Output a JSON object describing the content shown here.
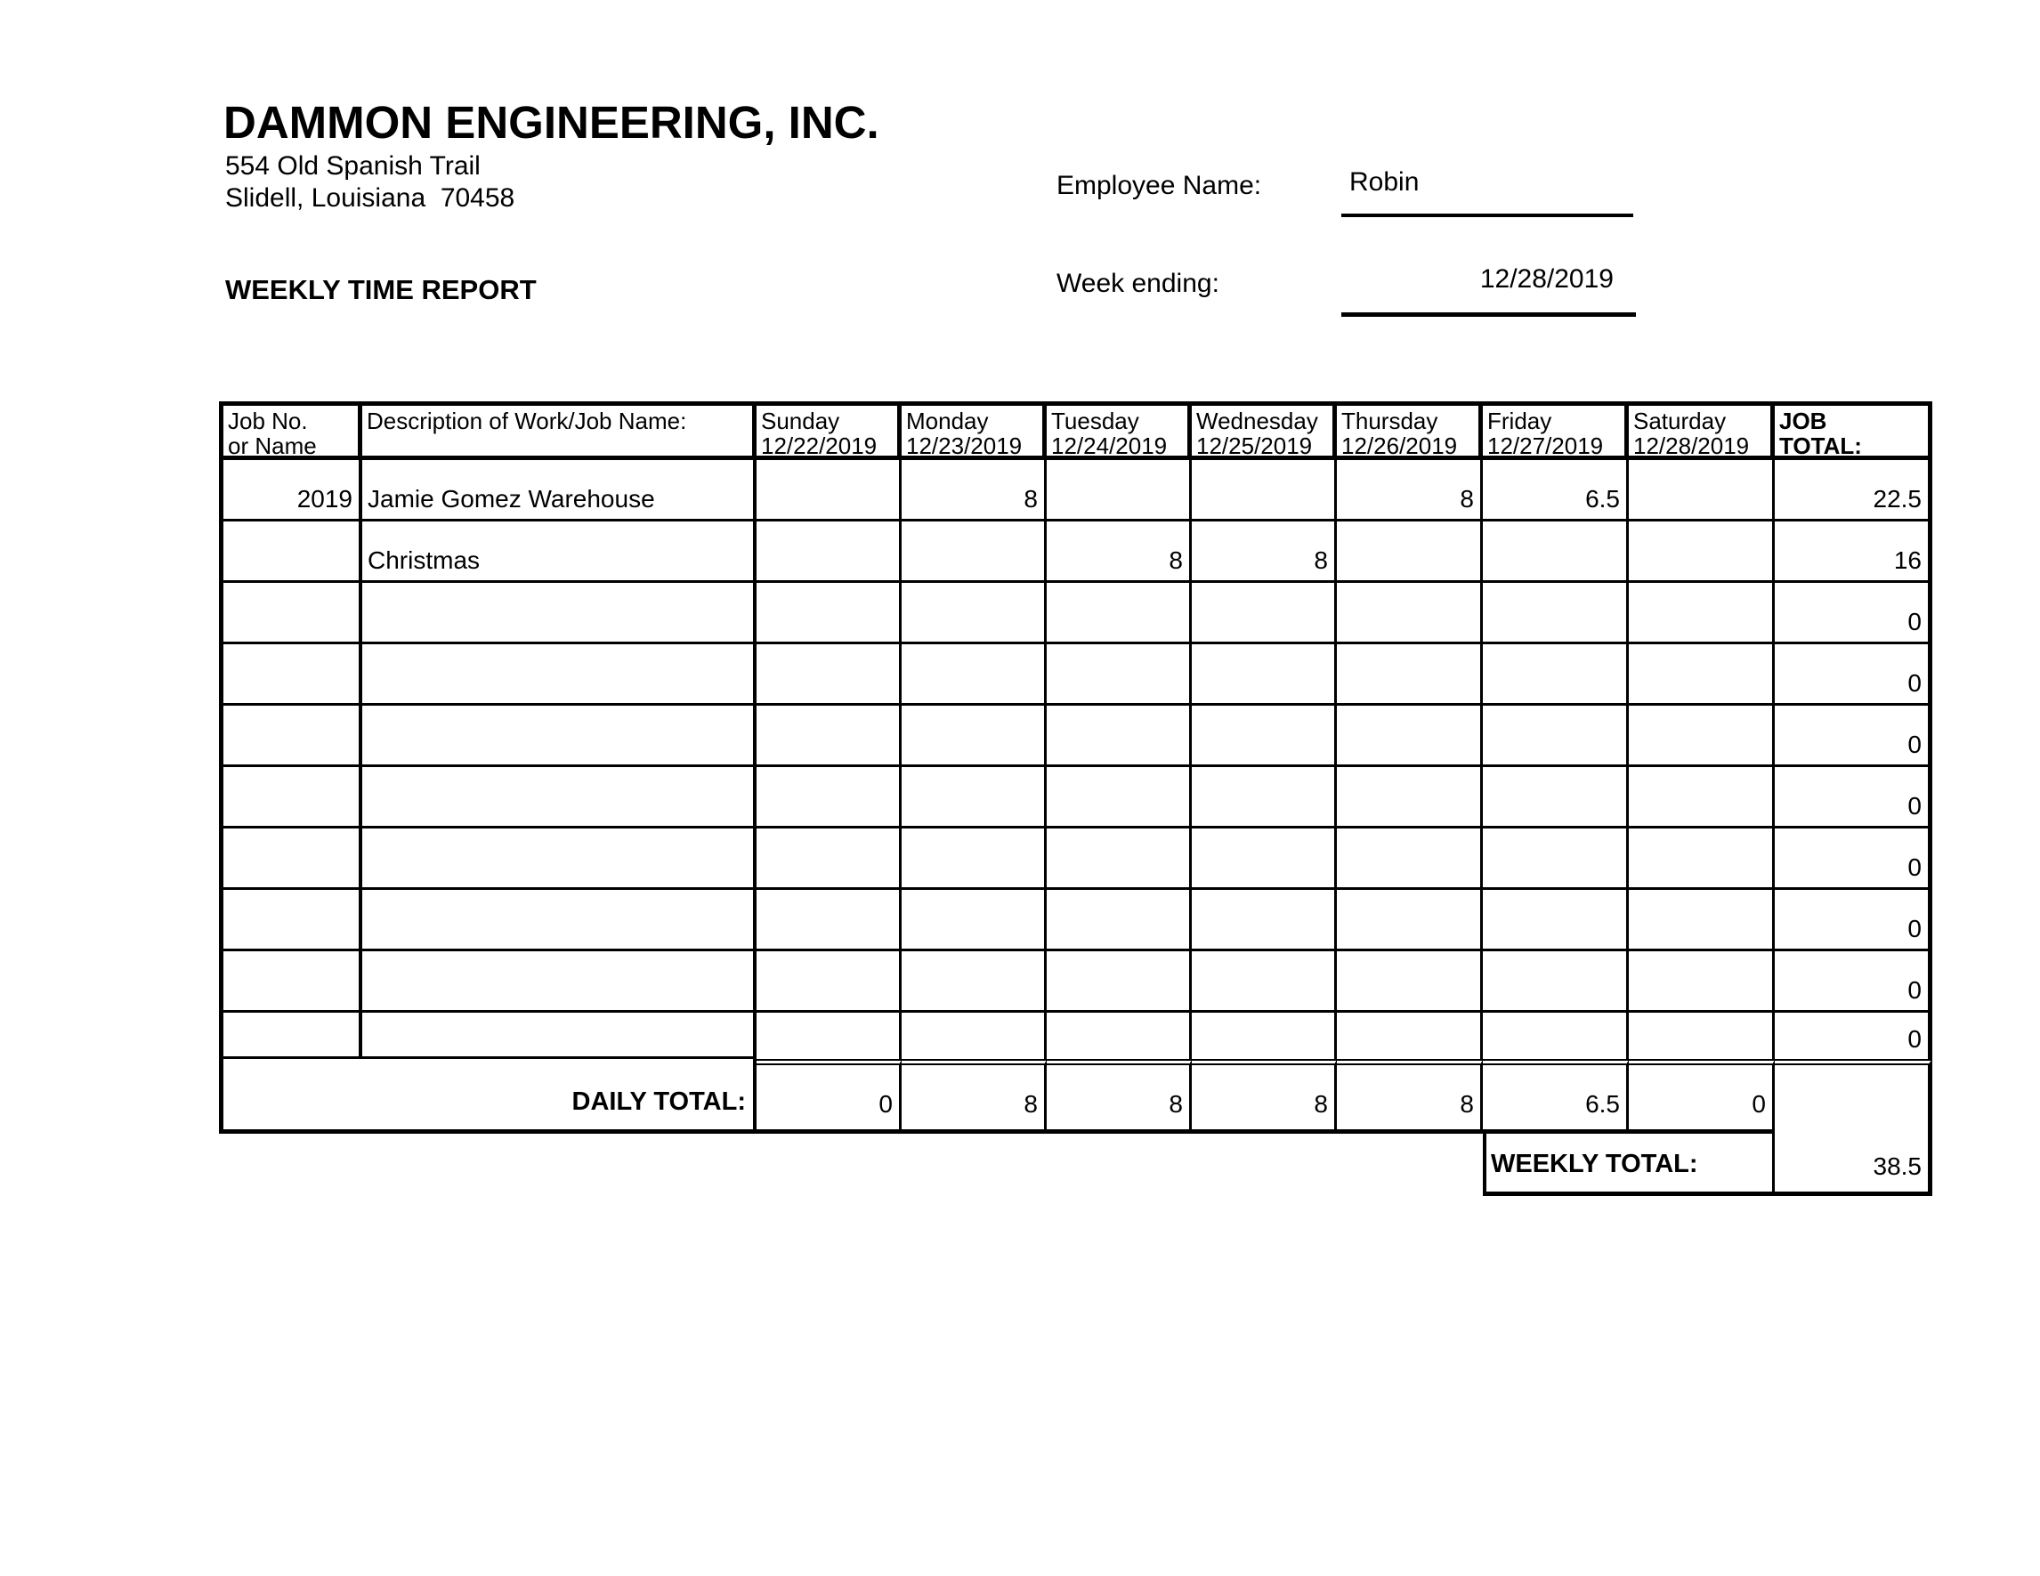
{
  "company": {
    "name": "DAMMON ENGINEERING, INC.",
    "address_line1": "554 Old Spanish Trail",
    "address_line2": "Slidell, Louisiana  70458"
  },
  "report": {
    "title": "WEEKLY TIME REPORT"
  },
  "header_fields": {
    "employee_name_label": "Employee Name:",
    "employee_name_value": "Robin",
    "week_ending_label": "Week ending:",
    "week_ending_value": "12/28/2019"
  },
  "table": {
    "columns": [
      {
        "line1": "Job No.",
        "line2": "or Name"
      },
      {
        "line1": "Description of Work/Job Name:",
        "line2": ""
      },
      {
        "line1": "Sunday",
        "line2": "12/22/2019"
      },
      {
        "line1": "Monday",
        "line2": "12/23/2019"
      },
      {
        "line1": "Tuesday",
        "line2": "12/24/2019"
      },
      {
        "line1": "Wednesday",
        "line2": "12/25/2019"
      },
      {
        "line1": "Thursday",
        "line2": "12/26/2019"
      },
      {
        "line1": "Friday",
        "line2": "12/27/2019"
      },
      {
        "line1": "Saturday",
        "line2": "12/28/2019"
      },
      {
        "line1": "JOB",
        "line2": "TOTAL:"
      }
    ],
    "rows": [
      {
        "job_no": "2019",
        "description": "Jamie Gomez Warehouse",
        "sun": "",
        "mon": "8",
        "tue": "",
        "wed": "",
        "thu": "8",
        "fri": "6.5",
        "sat": "",
        "job_total": "22.5"
      },
      {
        "job_no": "",
        "description": "Christmas",
        "sun": "",
        "mon": "",
        "tue": "8",
        "wed": "8",
        "thu": "",
        "fri": "",
        "sat": "",
        "job_total": "16"
      },
      {
        "job_no": "",
        "description": "",
        "sun": "",
        "mon": "",
        "tue": "",
        "wed": "",
        "thu": "",
        "fri": "",
        "sat": "",
        "job_total": "0"
      },
      {
        "job_no": "",
        "description": "",
        "sun": "",
        "mon": "",
        "tue": "",
        "wed": "",
        "thu": "",
        "fri": "",
        "sat": "",
        "job_total": "0"
      },
      {
        "job_no": "",
        "description": "",
        "sun": "",
        "mon": "",
        "tue": "",
        "wed": "",
        "thu": "",
        "fri": "",
        "sat": "",
        "job_total": "0"
      },
      {
        "job_no": "",
        "description": "",
        "sun": "",
        "mon": "",
        "tue": "",
        "wed": "",
        "thu": "",
        "fri": "",
        "sat": "",
        "job_total": "0"
      },
      {
        "job_no": "",
        "description": "",
        "sun": "",
        "mon": "",
        "tue": "",
        "wed": "",
        "thu": "",
        "fri": "",
        "sat": "",
        "job_total": "0"
      },
      {
        "job_no": "",
        "description": "",
        "sun": "",
        "mon": "",
        "tue": "",
        "wed": "",
        "thu": "",
        "fri": "",
        "sat": "",
        "job_total": "0"
      },
      {
        "job_no": "",
        "description": "",
        "sun": "",
        "mon": "",
        "tue": "",
        "wed": "",
        "thu": "",
        "fri": "",
        "sat": "",
        "job_total": "0"
      },
      {
        "job_no": "",
        "description": "",
        "sun": "",
        "mon": "",
        "tue": "",
        "wed": "",
        "thu": "",
        "fri": "",
        "sat": "",
        "job_total": "0"
      }
    ],
    "daily_total": {
      "label": "DAILY TOTAL:",
      "sun": "0",
      "mon": "8",
      "tue": "8",
      "wed": "8",
      "thu": "8",
      "fri": "6.5",
      "sat": "0"
    },
    "weekly_total": {
      "label": "WEEKLY TOTAL:",
      "value": "38.5"
    }
  }
}
